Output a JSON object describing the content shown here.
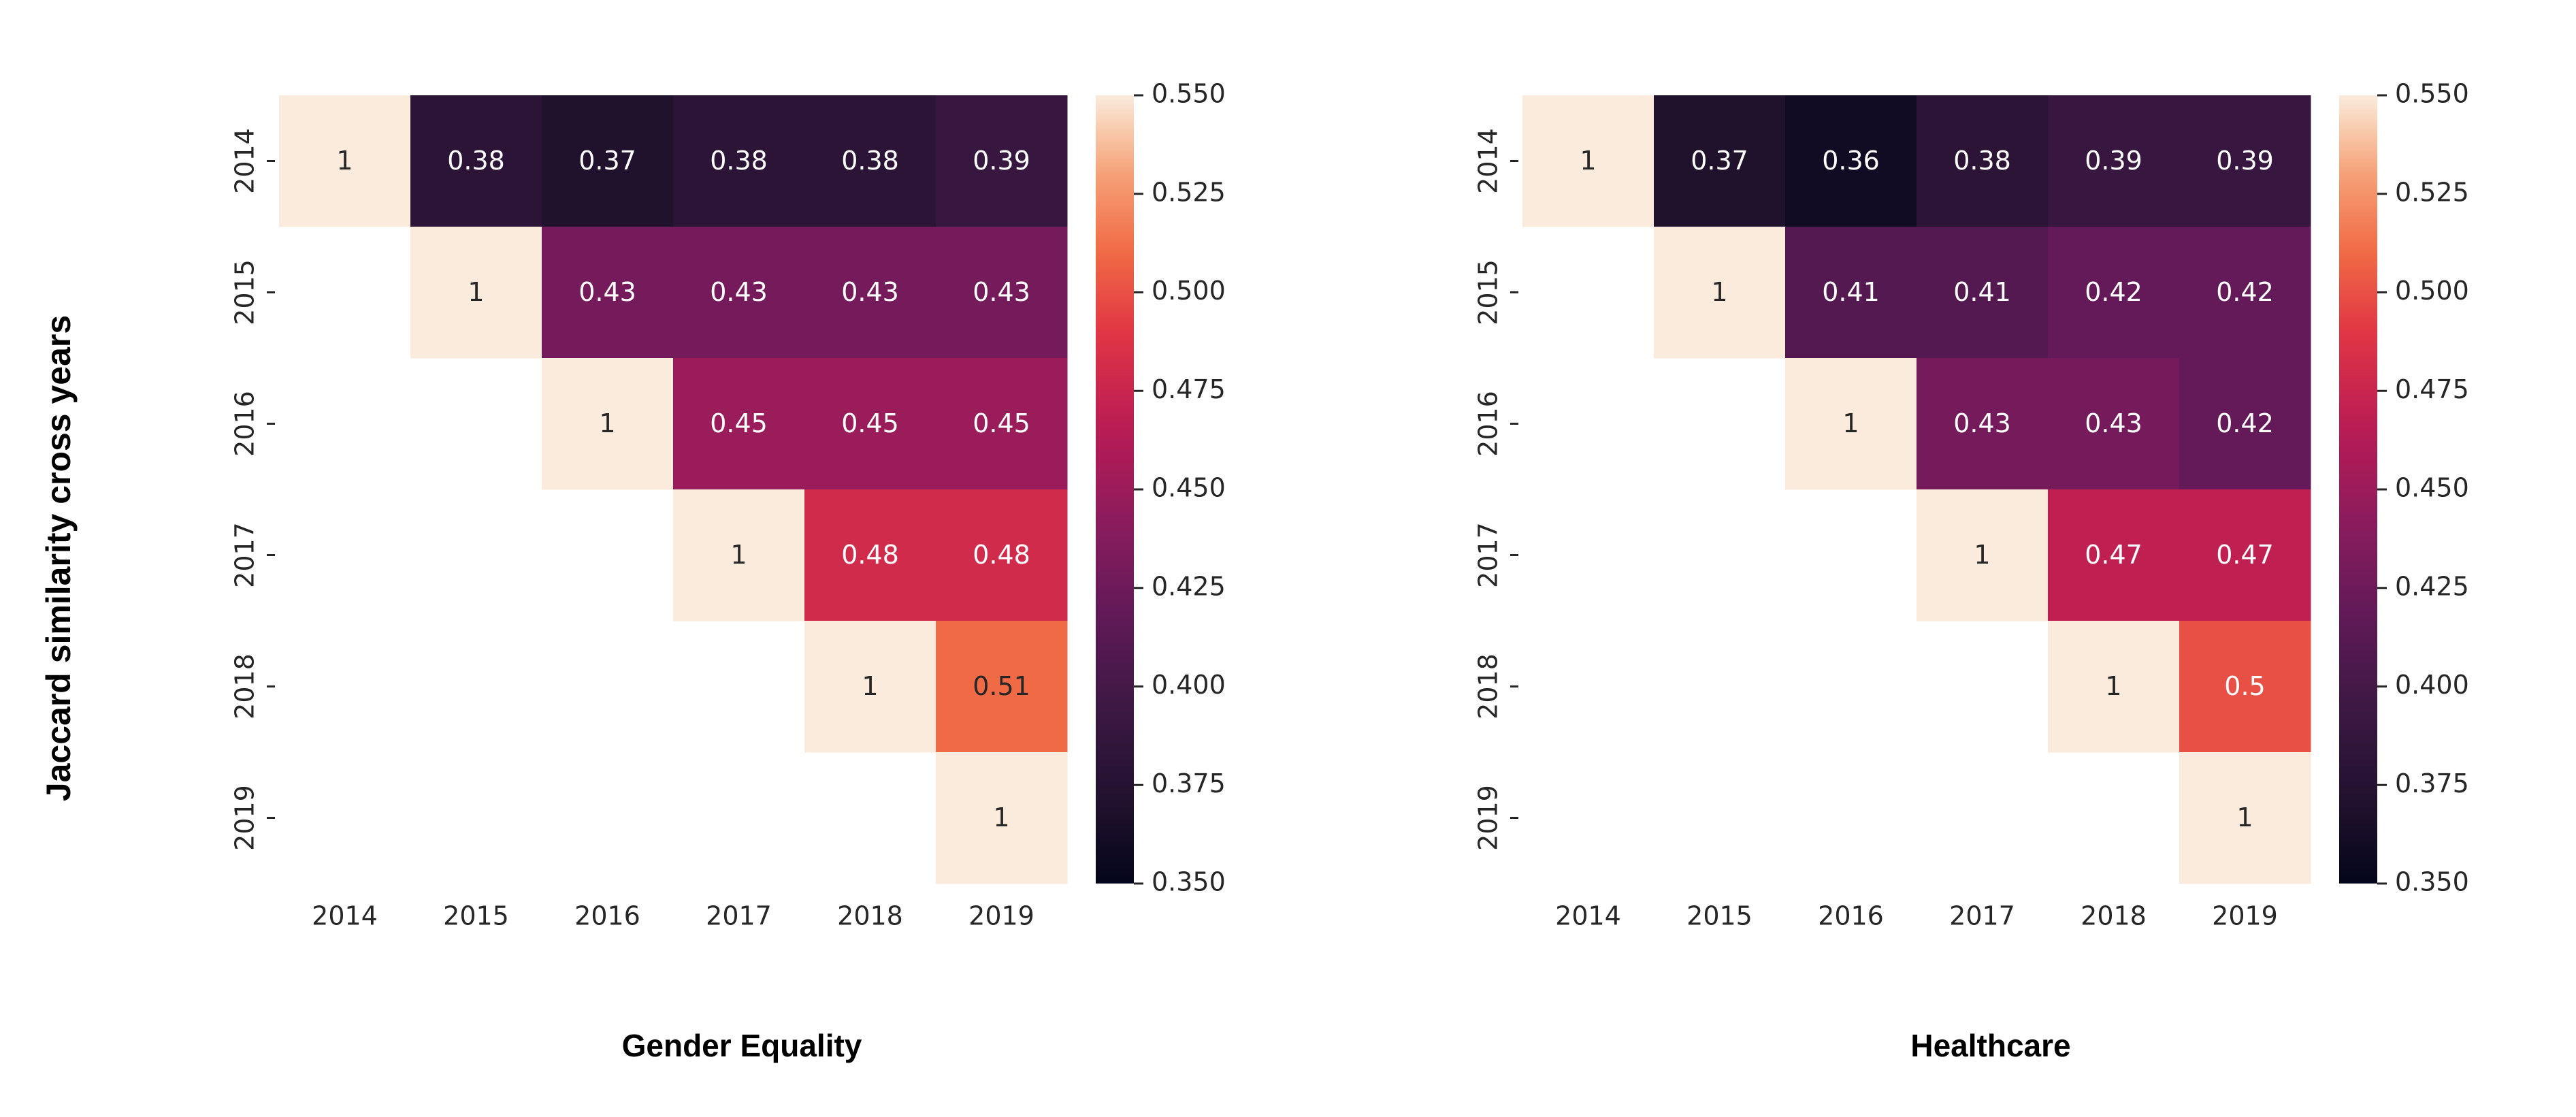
{
  "figure": {
    "ylabel": "Jaccard similarity cross years"
  },
  "colors": {
    "text_dark": "#262626",
    "text_light": "#ffffff",
    "axis": "#262626"
  },
  "chart_data": [
    {
      "type": "heatmap",
      "title": "Gender Equality",
      "x_categories": [
        "2014",
        "2015",
        "2016",
        "2017",
        "2018",
        "2019"
      ],
      "y_categories": [
        "2014",
        "2015",
        "2016",
        "2017",
        "2018",
        "2019"
      ],
      "values": [
        [
          1,
          0.38,
          0.37,
          0.38,
          0.38,
          0.39
        ],
        [
          null,
          1,
          0.43,
          0.43,
          0.43,
          0.43
        ],
        [
          null,
          null,
          1,
          0.45,
          0.45,
          0.45
        ],
        [
          null,
          null,
          null,
          1,
          0.48,
          0.48
        ],
        [
          null,
          null,
          null,
          null,
          1,
          0.51
        ],
        [
          null,
          null,
          null,
          null,
          null,
          1
        ]
      ],
      "labels": [
        [
          "1",
          "0.38",
          "0.37",
          "0.38",
          "0.38",
          "0.39"
        ],
        [
          "",
          "1",
          "0.43",
          "0.43",
          "0.43",
          "0.43"
        ],
        [
          "",
          "",
          "1",
          "0.45",
          "0.45",
          "0.45"
        ],
        [
          "",
          "",
          "",
          "1",
          "0.48",
          "0.48"
        ],
        [
          "",
          "",
          "",
          "",
          "1",
          "0.51"
        ],
        [
          "",
          "",
          "",
          "",
          "",
          "1"
        ]
      ],
      "colorbar": {
        "vmin": 0.35,
        "vmax": 0.55,
        "ticks": [
          "0.550",
          "0.525",
          "0.500",
          "0.475",
          "0.450",
          "0.425",
          "0.400",
          "0.375",
          "0.350"
        ],
        "colormap": "rocket"
      }
    },
    {
      "type": "heatmap",
      "title": "Healthcare",
      "x_categories": [
        "2014",
        "2015",
        "2016",
        "2017",
        "2018",
        "2019"
      ],
      "y_categories": [
        "2014",
        "2015",
        "2016",
        "2017",
        "2018",
        "2019"
      ],
      "values": [
        [
          1,
          0.37,
          0.36,
          0.38,
          0.39,
          0.39
        ],
        [
          null,
          1,
          0.41,
          0.41,
          0.42,
          0.42
        ],
        [
          null,
          null,
          1,
          0.43,
          0.43,
          0.42
        ],
        [
          null,
          null,
          null,
          1,
          0.47,
          0.47
        ],
        [
          null,
          null,
          null,
          null,
          1,
          0.5
        ],
        [
          null,
          null,
          null,
          null,
          null,
          1
        ]
      ],
      "labels": [
        [
          "1",
          "0.37",
          "0.36",
          "0.38",
          "0.39",
          "0.39"
        ],
        [
          "",
          "1",
          "0.41",
          "0.41",
          "0.42",
          "0.42"
        ],
        [
          "",
          "",
          "1",
          "0.43",
          "0.43",
          "0.42"
        ],
        [
          "",
          "",
          "",
          "1",
          "0.47",
          "0.47"
        ],
        [
          "",
          "",
          "",
          "",
          "1",
          "0.5"
        ],
        [
          "",
          "",
          "",
          "",
          "",
          "1"
        ]
      ],
      "colorbar": {
        "vmin": 0.35,
        "vmax": 0.55,
        "ticks": [
          "0.550",
          "0.525",
          "0.500",
          "0.475",
          "0.450",
          "0.425",
          "0.400",
          "0.375",
          "0.350"
        ],
        "colormap": "rocket"
      }
    }
  ]
}
